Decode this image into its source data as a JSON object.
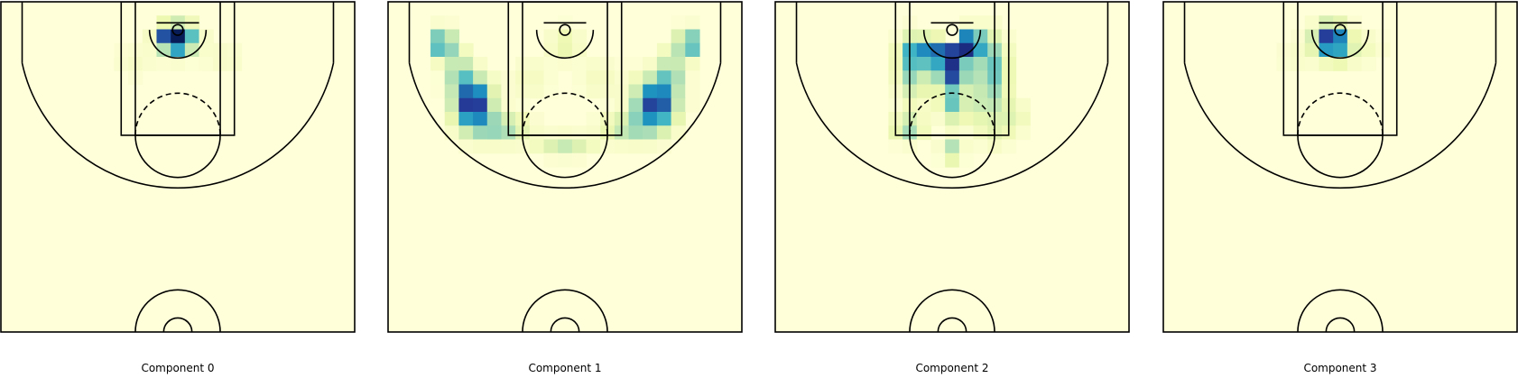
{
  "chart_data": {
    "type": "heatmap",
    "cmap": "YlGnBu",
    "background_color": "#ffffd9",
    "grid_cells": [
      25,
      24
    ],
    "panels": [
      {
        "title": "Component 0",
        "hotspots": [
          {
            "x": 0,
            "y": 1.2,
            "sx": 1.6,
            "sy": 1.3,
            "w": 1.0
          },
          {
            "x": -1.8,
            "y": 1.0,
            "sx": 0.9,
            "sy": 0.9,
            "w": 0.35
          },
          {
            "x": 0,
            "y": 3.2,
            "sx": 1.2,
            "sy": 0.8,
            "w": 0.12
          },
          {
            "x": -6.0,
            "y": 4.5,
            "sx": 2.0,
            "sy": 1.6,
            "w": 0.06
          },
          {
            "x": 6.5,
            "y": 4.0,
            "sx": 2.0,
            "sy": 1.6,
            "w": 0.06
          }
        ]
      },
      {
        "title": "Component 1",
        "hotspots": [
          {
            "x": -17.2,
            "y": 2.0,
            "sx": 0.9,
            "sy": 1.3,
            "w": 0.8
          },
          {
            "x": 17.3,
            "y": 2.0,
            "sx": 0.9,
            "sy": 1.3,
            "w": 0.7
          },
          {
            "x": -13.0,
            "y": 10.5,
            "sx": 1.7,
            "sy": 2.3,
            "w": 1.0
          },
          {
            "x": 12.8,
            "y": 10.5,
            "sx": 1.9,
            "sy": 2.3,
            "w": 0.9
          },
          {
            "x": -9.0,
            "y": 14.0,
            "sx": 2.5,
            "sy": 1.3,
            "w": 0.35
          },
          {
            "x": 9.0,
            "y": 14.0,
            "sx": 2.5,
            "sy": 1.3,
            "w": 0.3
          },
          {
            "x": 0,
            "y": 16.5,
            "sx": 2.5,
            "sy": 1.0,
            "w": 0.25
          },
          {
            "x": -15.0,
            "y": 6.0,
            "sx": 1.2,
            "sy": 2.0,
            "w": 0.35
          },
          {
            "x": 15.0,
            "y": 6.0,
            "sx": 1.2,
            "sy": 2.0,
            "w": 0.35
          },
          {
            "x": 0,
            "y": 2.0,
            "sx": 1.5,
            "sy": 1.5,
            "w": 0.15
          },
          {
            "x": -5.0,
            "y": 7.0,
            "sx": 2.0,
            "sy": 2.0,
            "w": 0.08
          },
          {
            "x": 5.0,
            "y": 7.0,
            "sx": 2.0,
            "sy": 2.0,
            "w": 0.08
          }
        ]
      },
      {
        "title": "Component 2",
        "hotspots": [
          {
            "x": 2.0,
            "y": 2.0,
            "sx": 1.6,
            "sy": 1.2,
            "w": 1.0
          },
          {
            "x": 0,
            "y": 5.8,
            "sx": 1.4,
            "sy": 2.0,
            "w": 0.9
          },
          {
            "x": -2.5,
            "y": 3.2,
            "sx": 1.6,
            "sy": 1.2,
            "w": 0.6
          },
          {
            "x": 5.5,
            "y": 5.5,
            "sx": 1.5,
            "sy": 3.0,
            "w": 0.45
          },
          {
            "x": -5.5,
            "y": 6.0,
            "sx": 1.5,
            "sy": 2.8,
            "w": 0.35
          },
          {
            "x": -5.5,
            "y": 3.0,
            "sx": 1.3,
            "sy": 1.5,
            "w": 0.3
          },
          {
            "x": 0,
            "y": 11.0,
            "sx": 1.1,
            "sy": 1.3,
            "w": 0.35
          },
          {
            "x": -6.2,
            "y": 14.0,
            "sx": 1.4,
            "sy": 1.2,
            "w": 0.35
          },
          {
            "x": 0,
            "y": 17.0,
            "sx": 1.0,
            "sy": 1.2,
            "w": 0.3
          },
          {
            "x": 4.5,
            "y": 11.0,
            "sx": 2.5,
            "sy": 2.0,
            "w": 0.18
          },
          {
            "x": 8.5,
            "y": 12.5,
            "sx": 1.5,
            "sy": 1.5,
            "w": 0.12
          },
          {
            "x": 6.0,
            "y": 15.0,
            "sx": 1.5,
            "sy": 1.2,
            "w": 0.12
          },
          {
            "x": 0,
            "y": 0.5,
            "sx": 0.8,
            "sy": 0.6,
            "w": -0.75
          }
        ]
      },
      {
        "title": "Component 3",
        "hotspots": [
          {
            "x": -1.3,
            "y": 1.4,
            "sx": 1.5,
            "sy": 1.4,
            "w": 1.0
          },
          {
            "x": 0,
            "y": 3.5,
            "sx": 1.5,
            "sy": 1.0,
            "w": 0.18
          },
          {
            "x": 3.5,
            "y": 2.5,
            "sx": 1.8,
            "sy": 1.5,
            "w": 0.08
          },
          {
            "x": -6.0,
            "y": 3.5,
            "sx": 2.0,
            "sy": 2.0,
            "w": 0.05
          }
        ]
      }
    ]
  }
}
